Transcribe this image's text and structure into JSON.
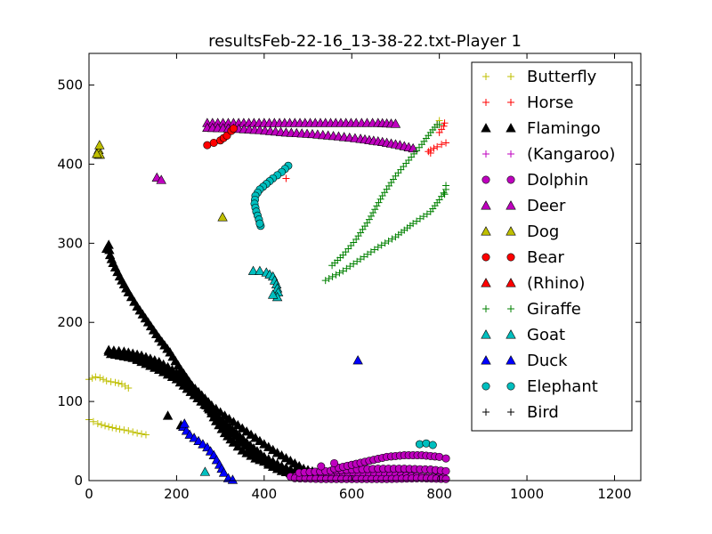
{
  "chart_data": {
    "type": "scatter",
    "title": "resultsFeb-22-16_13-38-22.txt-Player 1",
    "xlabel": "",
    "ylabel": "",
    "xlim": [
      0,
      1260
    ],
    "ylim": [
      0,
      540
    ],
    "xticks": [
      0,
      200,
      400,
      600,
      800,
      1000,
      1200
    ],
    "yticks": [
      0,
      100,
      200,
      300,
      400,
      500
    ],
    "xtick_labels": [
      "0",
      "200",
      "400",
      "600",
      "800",
      "1000",
      "1200"
    ],
    "ytick_labels": [
      "0",
      "100",
      "200",
      "300",
      "400",
      "500"
    ],
    "grid": false,
    "legend": "top-right",
    "series": [
      {
        "name": "Butterfly",
        "marker": "plus",
        "color": "#bfbf00",
        "polylines": [
          [
            [
              0,
              128
            ],
            [
              15,
              131
            ],
            [
              25,
              130
            ],
            [
              40,
              126
            ],
            [
              60,
              124
            ],
            [
              75,
              122
            ],
            [
              90,
              117
            ]
          ],
          [
            [
              0,
              77
            ],
            [
              20,
              72
            ],
            [
              45,
              68
            ],
            [
              70,
              65
            ],
            [
              90,
              63
            ],
            [
              110,
              60
            ],
            [
              130,
              58
            ]
          ]
        ],
        "points": [
          [
            800,
            455
          ]
        ]
      },
      {
        "name": "Horse",
        "marker": "plus",
        "color": "#ff0000",
        "polylines": [
          [
            [
              780,
              418
            ],
            [
              795,
              422
            ],
            [
              805,
              425
            ],
            [
              815,
              427
            ]
          ],
          [
            [
              800,
              440
            ],
            [
              810,
              448
            ],
            [
              812,
              452
            ]
          ]
        ],
        "points": [
          [
            450,
            382
          ],
          [
            775,
            416
          ],
          [
            780,
            414
          ],
          [
            795,
            450
          ]
        ]
      },
      {
        "name": "Flamingo",
        "marker": "triangle",
        "color": "#000000",
        "polylines": [
          [
            [
              40,
              293
            ],
            [
              45,
              298
            ],
            [
              48,
              285
            ],
            [
              55,
              275
            ],
            [
              70,
              258
            ],
            [
              90,
              238
            ],
            [
              110,
              220
            ],
            [
              135,
              200
            ],
            [
              160,
              180
            ],
            [
              185,
              162
            ],
            [
              210,
              140
            ],
            [
              235,
              120
            ],
            [
              260,
              100
            ],
            [
              290,
              82
            ],
            [
              320,
              65
            ],
            [
              350,
              48
            ],
            [
              380,
              32
            ],
            [
              410,
              20
            ],
            [
              440,
              12
            ],
            [
              470,
              8
            ],
            [
              500,
              5
            ]
          ],
          [
            [
              45,
              165
            ],
            [
              80,
              163
            ],
            [
              120,
              158
            ],
            [
              160,
              150
            ],
            [
              190,
              140
            ],
            [
              220,
              128
            ],
            [
              250,
              112
            ],
            [
              280,
              95
            ],
            [
              310,
              82
            ],
            [
              340,
              70
            ],
            [
              370,
              58
            ],
            [
              400,
              46
            ],
            [
              430,
              35
            ],
            [
              460,
              25
            ],
            [
              490,
              15
            ],
            [
              520,
              10
            ]
          ],
          [
            [
              50,
              160
            ],
            [
              100,
              155
            ],
            [
              150,
              148
            ],
            [
              200,
              132
            ],
            [
              240,
              115
            ],
            [
              270,
              95
            ],
            [
              290,
              75
            ],
            [
              310,
              60
            ],
            [
              330,
              48
            ],
            [
              350,
              38
            ],
            [
              380,
              28
            ],
            [
              420,
              20
            ]
          ],
          [
            [
              45,
              163
            ],
            [
              80,
              160
            ],
            [
              120,
              150
            ],
            [
              160,
              140
            ],
            [
              200,
              128
            ],
            [
              240,
              108
            ],
            [
              280,
              88
            ],
            [
              320,
              68
            ],
            [
              360,
              48
            ],
            [
              400,
              30
            ],
            [
              440,
              18
            ],
            [
              480,
              10
            ],
            [
              520,
              5
            ],
            [
              560,
              3
            ]
          ]
        ],
        "points": [
          [
            180,
            82
          ],
          [
            210,
            70
          ]
        ]
      },
      {
        "name": "(Kangaroo)",
        "marker": "plus",
        "color": "#bf00bf",
        "polylines": [],
        "points": []
      },
      {
        "name": "Dolphin",
        "marker": "circle",
        "color": "#bf00bf",
        "polylines": [
          [
            [
              460,
              5
            ],
            [
              520,
              6
            ],
            [
              580,
              8
            ],
            [
              640,
              8
            ],
            [
              700,
              7
            ],
            [
              760,
              5
            ],
            [
              810,
              4
            ]
          ],
          [
            [
              470,
              3
            ],
            [
              530,
              2
            ],
            [
              600,
              2
            ],
            [
              680,
              2
            ],
            [
              760,
              3
            ],
            [
              815,
              2
            ]
          ],
          [
            [
              480,
              10
            ],
            [
              540,
              12
            ],
            [
              600,
              14
            ],
            [
              660,
              15
            ],
            [
              720,
              15
            ],
            [
              780,
              14
            ],
            [
              815,
              12
            ]
          ],
          [
            [
              560,
              15
            ],
            [
              600,
              20
            ],
            [
              640,
              25
            ],
            [
              680,
              30
            ],
            [
              720,
              32
            ],
            [
              760,
              32
            ],
            [
              800,
              30
            ],
            [
              815,
              28
            ]
          ]
        ],
        "points": [
          [
            530,
            18
          ],
          [
            560,
            22
          ]
        ]
      },
      {
        "name": "Deer",
        "marker": "triangle",
        "color": "#bf00bf",
        "polylines": [
          [
            [
              270,
              452
            ],
            [
              330,
              452
            ],
            [
              400,
              452
            ],
            [
              470,
              452
            ],
            [
              540,
              452
            ],
            [
              610,
              452
            ],
            [
              660,
              452
            ],
            [
              700,
              451
            ]
          ],
          [
            [
              270,
              446
            ],
            [
              330,
              445
            ],
            [
              390,
              443
            ],
            [
              450,
              440
            ],
            [
              510,
              438
            ],
            [
              570,
              435
            ],
            [
              620,
              432
            ],
            [
              670,
              428
            ],
            [
              710,
              424
            ],
            [
              740,
              420
            ]
          ]
        ],
        "points": [
          [
            155,
            383
          ],
          [
            165,
            380
          ]
        ]
      },
      {
        "name": "Dog",
        "marker": "triangle",
        "color": "#bfbf00",
        "polylines": [
          [
            [
              22,
              412
            ],
            [
              22,
              418
            ],
            [
              24,
              424
            ]
          ]
        ],
        "points": [
          [
            25,
            412
          ],
          [
            305,
            333
          ],
          [
            18,
            413
          ]
        ]
      },
      {
        "name": "Bear",
        "marker": "circle",
        "color": "#ff0000",
        "polylines": [
          [
            [
              270,
              424
            ],
            [
              285,
              427
            ],
            [
              300,
              430
            ],
            [
              315,
              436
            ],
            [
              325,
              442
            ],
            [
              330,
              445
            ]
          ]
        ],
        "points": []
      },
      {
        "name": "(Rhino)",
        "marker": "triangle",
        "color": "#ff0000",
        "polylines": [],
        "points": []
      },
      {
        "name": "Giraffe",
        "marker": "plus",
        "color": "#008000",
        "polylines": [
          [
            [
              540,
              253
            ],
            [
              580,
              265
            ],
            [
              620,
              280
            ],
            [
              660,
              295
            ],
            [
              700,
              308
            ],
            [
              740,
              325
            ],
            [
              780,
              340
            ],
            [
              800,
              355
            ],
            [
              815,
              368
            ]
          ],
          [
            [
              555,
              272
            ],
            [
              580,
              285
            ],
            [
              610,
              305
            ],
            [
              640,
              330
            ],
            [
              670,
              360
            ],
            [
              700,
              385
            ],
            [
              730,
              405
            ],
            [
              760,
              425
            ],
            [
              780,
              440
            ],
            [
              795,
              450
            ]
          ]
        ],
        "points": [
          [
            815,
            373
          ],
          [
            812,
            362
          ],
          [
            800,
            450
          ]
        ]
      },
      {
        "name": "Goat",
        "marker": "triangle",
        "color": "#00bfbf",
        "polylines": [
          [
            [
              375,
              265
            ],
            [
              390,
              265
            ],
            [
              405,
              263
            ],
            [
              420,
              258
            ],
            [
              428,
              248
            ],
            [
              432,
              238
            ],
            [
              430,
              232
            ]
          ]
        ],
        "points": [
          [
            265,
            11
          ],
          [
            420,
            235
          ]
        ]
      },
      {
        "name": "Duck",
        "marker": "triangle",
        "color": "#0000ff",
        "polylines": [
          [
            [
              215,
              68
            ],
            [
              230,
              58
            ],
            [
              250,
              50
            ],
            [
              270,
              42
            ],
            [
              285,
              32
            ],
            [
              298,
              20
            ],
            [
              308,
              10
            ],
            [
              318,
              3
            ],
            [
              328,
              1
            ]
          ]
        ],
        "points": [
          [
            614,
            152
          ],
          [
            218,
            72
          ]
        ]
      },
      {
        "name": "Elephant",
        "marker": "circle",
        "color": "#00bfbf",
        "polylines": [
          [
            [
              455,
              398
            ],
            [
              440,
              390
            ],
            [
              420,
              382
            ],
            [
              405,
              375
            ],
            [
              390,
              368
            ],
            [
              380,
              360
            ],
            [
              378,
              350
            ],
            [
              382,
              340
            ],
            [
              388,
              330
            ],
            [
              392,
              322
            ]
          ]
        ],
        "points": [
          [
            755,
            46
          ],
          [
            770,
            47
          ],
          [
            785,
            45
          ],
          [
            390,
            325
          ]
        ]
      },
      {
        "name": "Bird",
        "marker": "plus",
        "color": "#000000",
        "polylines": [],
        "points": []
      }
    ]
  }
}
